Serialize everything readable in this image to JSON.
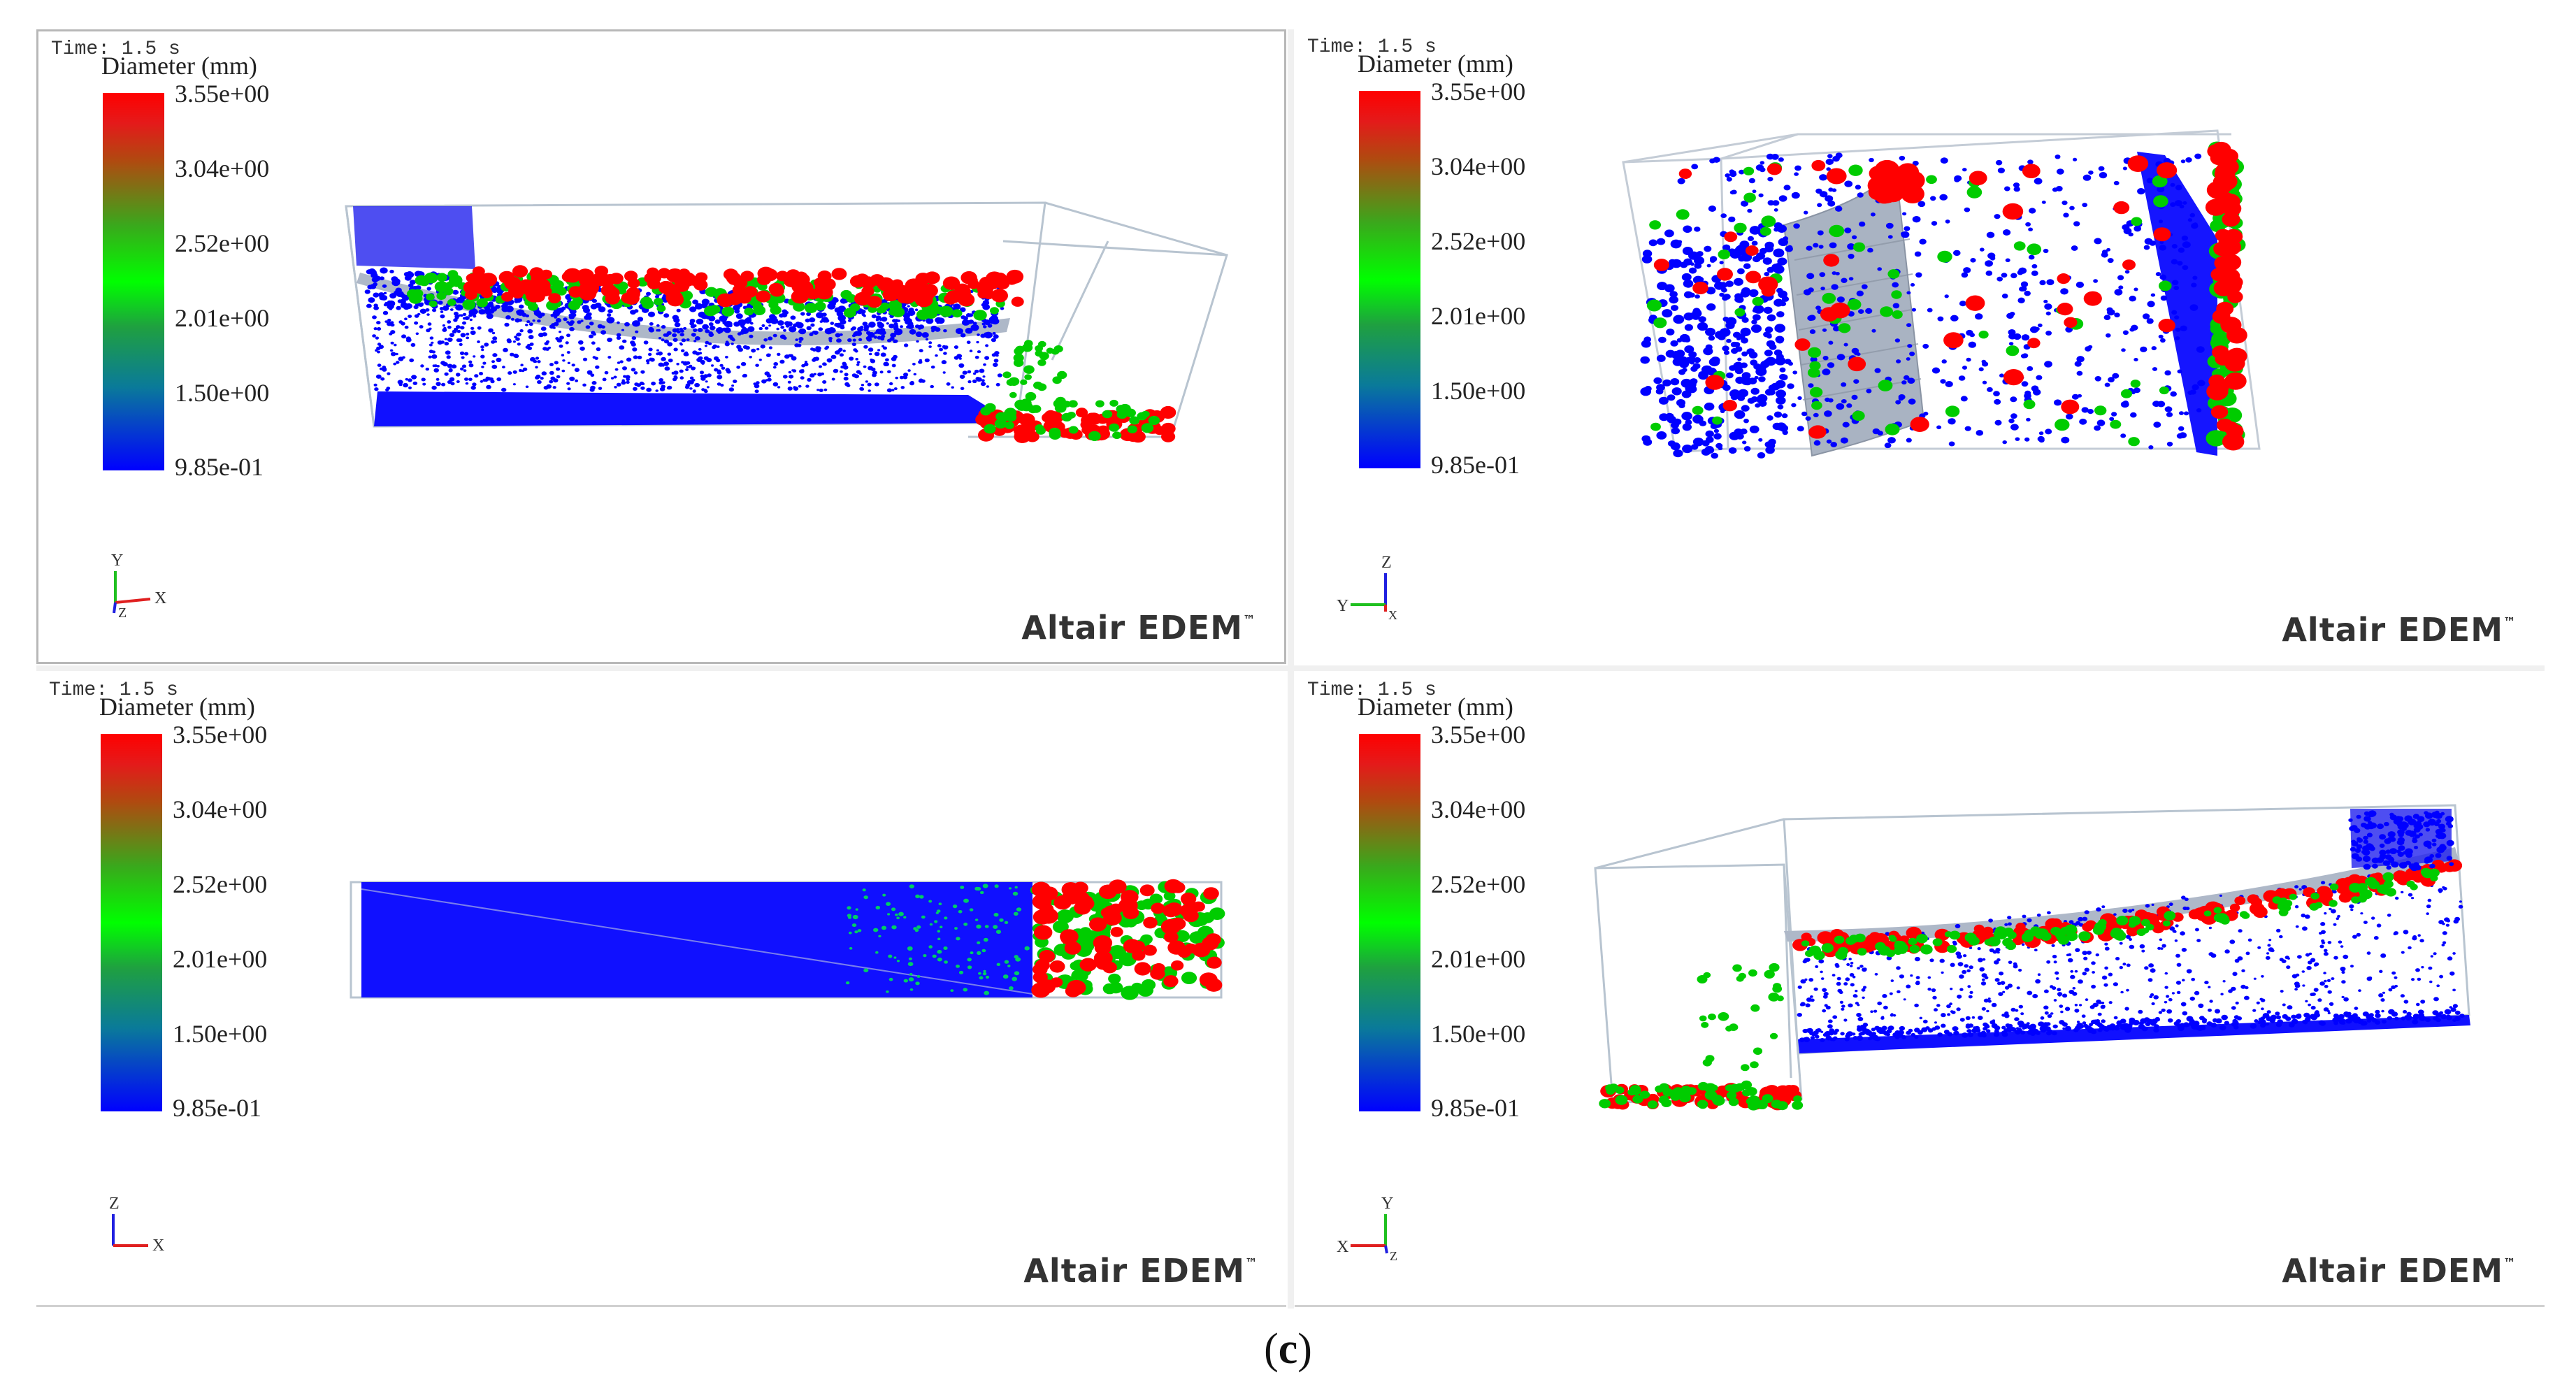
{
  "panels": [
    {
      "time": "Time: 1.5 s",
      "legend_title": "Diameter (mm)",
      "ticks": [
        "3.55e+00",
        "3.04e+00",
        "2.52e+00",
        "2.01e+00",
        "1.50e+00",
        "9.85e-01"
      ],
      "axis_labels": {
        "up": "Y",
        "right": "X",
        "out": "Z"
      },
      "brand": "Altair EDEM",
      "brand_mark": "™"
    },
    {
      "time": "Time: 1.5 s",
      "legend_title": "Diameter (mm)",
      "ticks": [
        "3.55e+00",
        "3.04e+00",
        "2.52e+00",
        "2.01e+00",
        "1.50e+00",
        "9.85e-01"
      ],
      "axis_labels": {
        "up": "Z",
        "left": "Y",
        "out": "X"
      },
      "brand": "Altair EDEM",
      "brand_mark": "™"
    },
    {
      "time": "Time: 1.5 s",
      "legend_title": "Diameter (mm)",
      "ticks": [
        "3.55e+00",
        "3.04e+00",
        "2.52e+00",
        "2.01e+00",
        "1.50e+00",
        "9.85e-01"
      ],
      "axis_labels": {
        "up": "Z",
        "right": "X"
      },
      "brand": "Altair EDEM",
      "brand_mark": "™"
    },
    {
      "time": "Time: 1.5 s",
      "legend_title": "Diameter (mm)",
      "ticks": [
        "3.55e+00",
        "3.04e+00",
        "2.52e+00",
        "2.01e+00",
        "1.50e+00",
        "9.85e-01"
      ],
      "axis_labels": {
        "up": "Y",
        "left": "X",
        "out": "Z"
      },
      "brand": "Altair EDEM",
      "brand_mark": "™"
    }
  ],
  "caption": {
    "open": "(",
    "letter": "c",
    "close": ")"
  },
  "colors": {
    "large": "#ff0000",
    "medium": "#00cc00",
    "small": "#0000ff",
    "geometry": "#b8c4d0"
  }
}
